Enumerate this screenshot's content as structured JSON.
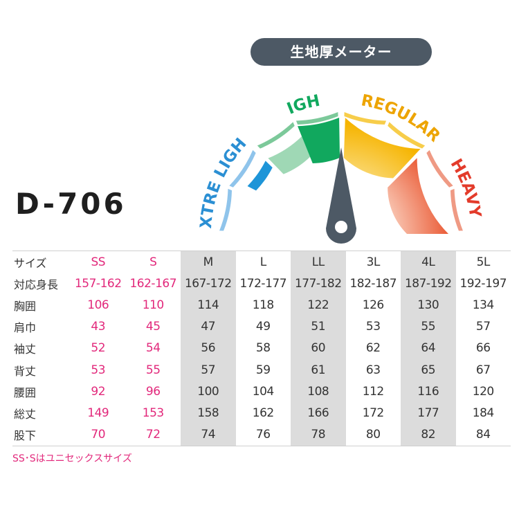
{
  "meter": {
    "title": "生地厚メーター",
    "levels": [
      {
        "label": "EXTRE LIGHT",
        "color": "#1e95d8",
        "arc_color": "#8fc4eb"
      },
      {
        "label": "LIGHT",
        "color": "#11a85e",
        "arc_color": "#7cc99a"
      },
      {
        "label": "REGULAR",
        "color": "#f6b400",
        "arc_color": "#f7cd4a"
      },
      {
        "label": "HEAVY",
        "color": "#e9552f",
        "arc_color": "#ef9a84"
      }
    ],
    "needle_color": "#4d5965",
    "label_color_extre_light": "#2b8fd3",
    "label_color_light": "#11a85e",
    "label_color_regular": "#eda400",
    "label_color_heavy": "#e33b2b",
    "fill_level": 0.5
  },
  "product": {
    "model": "D-706"
  },
  "size_table": {
    "headers": [
      "サイズ",
      "SS",
      "S",
      "M",
      "L",
      "LL",
      "3L",
      "4L",
      "5L"
    ],
    "rows": [
      {
        "label": "対応身長",
        "values": [
          "157-162",
          "162-167",
          "167-172",
          "172-177",
          "177-182",
          "182-187",
          "187-192",
          "192-197"
        ]
      },
      {
        "label": "胸囲",
        "values": [
          "106",
          "110",
          "114",
          "118",
          "122",
          "126",
          "130",
          "134"
        ]
      },
      {
        "label": "肩巾",
        "values": [
          "43",
          "45",
          "47",
          "49",
          "51",
          "53",
          "55",
          "57"
        ]
      },
      {
        "label": "袖丈",
        "values": [
          "52",
          "54",
          "56",
          "58",
          "60",
          "62",
          "64",
          "66"
        ]
      },
      {
        "label": "背丈",
        "values": [
          "53",
          "55",
          "57",
          "59",
          "61",
          "63",
          "65",
          "67"
        ]
      },
      {
        "label": "腰囲",
        "values": [
          "92",
          "96",
          "100",
          "104",
          "108",
          "112",
          "116",
          "120"
        ]
      },
      {
        "label": "総丈",
        "values": [
          "149",
          "153",
          "158",
          "162",
          "166",
          "172",
          "177",
          "184"
        ]
      },
      {
        "label": "股下",
        "values": [
          "70",
          "72",
          "74",
          "76",
          "78",
          "80",
          "82",
          "84"
        ]
      }
    ],
    "unisex_highlight_color": "#e2287b",
    "note": "SS･Sはユニセックスサイズ"
  }
}
